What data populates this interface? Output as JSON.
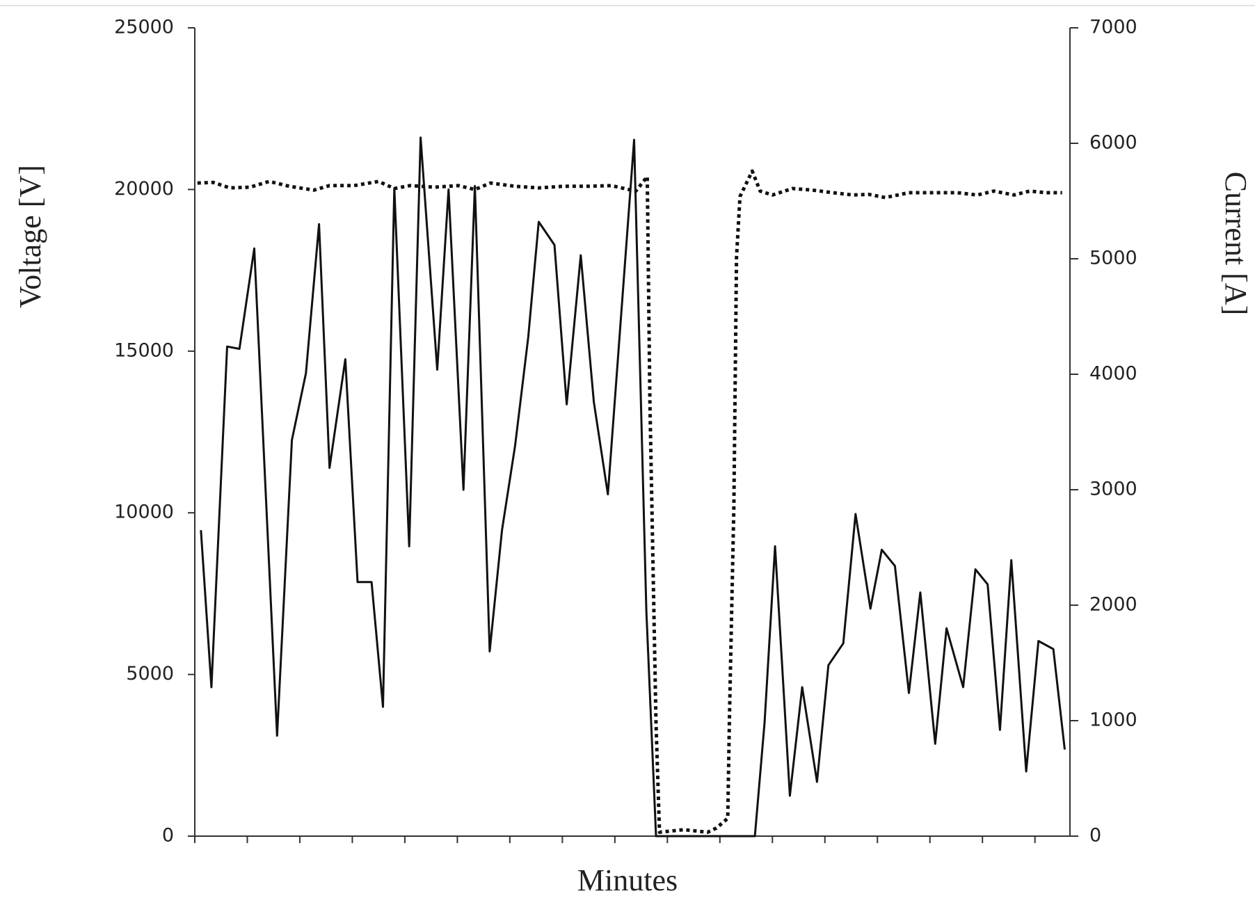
{
  "chart_data": {
    "type": "line",
    "y_label": "Voltage [V]",
    "y2_label": "Current [A]",
    "x_label": "Minutes",
    "xlim": [
      0,
      100
    ],
    "xticks": [
      0,
      6,
      12,
      18,
      24,
      30,
      36,
      42,
      48,
      54,
      60,
      66,
      72,
      78,
      84,
      90,
      96
    ],
    "ylim": [
      0,
      25000
    ],
    "yticks": [
      0,
      5000,
      10000,
      15000,
      20000,
      25000
    ],
    "y2lim": [
      0,
      7000
    ],
    "y2ticks": [
      0,
      1000,
      2000,
      3000,
      4000,
      5000,
      6000,
      7000
    ],
    "series": [
      {
        "color": "#111111",
        "style": "dotted",
        "axis": "y",
        "x": [
          0.3,
          2.1,
          4.0,
          6.3,
          8.5,
          10.8,
          13.6,
          15.4,
          18.2,
          21.0,
          22.8,
          24.6,
          27.4,
          30.1,
          32.0,
          33.8,
          36.6,
          39.3,
          42.1,
          44.9,
          47.6,
          50.4,
          51.7,
          52.0,
          52.7,
          53.1,
          55.9,
          58.6,
          59.6,
          60.9,
          61.1,
          61.6,
          61.9,
          62.3,
          63.7,
          64.6,
          66.0,
          68.3,
          70.6,
          72.9,
          75.2,
          77.0,
          78.9,
          81.6,
          84.4,
          87.1,
          89.4,
          91.3,
          93.6,
          95.4,
          97.2,
          99.1
        ],
        "values": [
          20200,
          20220,
          20050,
          20070,
          20250,
          20100,
          19980,
          20120,
          20120,
          20250,
          20030,
          20120,
          20070,
          20120,
          20000,
          20200,
          20100,
          20050,
          20100,
          20100,
          20120,
          19950,
          20400,
          13430,
          3480,
          120,
          200,
          120,
          250,
          550,
          3730,
          10200,
          17910,
          19780,
          20570,
          19950,
          19830,
          20030,
          19980,
          19900,
          19830,
          19850,
          19750,
          19900,
          19900,
          19900,
          19830,
          19950,
          19830,
          19950,
          19900,
          19900
        ]
      },
      {
        "color": "#111111",
        "style": "solid",
        "axis": "y2",
        "x": [
          0.7,
          1.9,
          3.7,
          5.1,
          6.8,
          9.4,
          11.1,
          12.7,
          14.2,
          15.4,
          17.2,
          18.6,
          20.2,
          21.5,
          22.8,
          24.5,
          25.8,
          27.7,
          29.0,
          30.7,
          32.0,
          33.7,
          35.1,
          36.6,
          38.1,
          39.3,
          41.1,
          42.5,
          44.1,
          45.6,
          47.2,
          50.2,
          51.6,
          52.7,
          64.0,
          65.1,
          66.3,
          68.0,
          69.4,
          71.1,
          72.4,
          74.1,
          75.5,
          77.2,
          78.5,
          80.0,
          81.6,
          82.9,
          84.6,
          85.9,
          87.8,
          89.2,
          90.6,
          92.0,
          93.3,
          95.0,
          96.4,
          98.1,
          99.4
        ],
        "values": [
          2650,
          1290,
          4240,
          4220,
          5090,
          870,
          3430,
          4010,
          5300,
          3190,
          4130,
          2200,
          2200,
          1120,
          5610,
          2510,
          6050,
          4040,
          5600,
          3000,
          5630,
          1600,
          2650,
          3380,
          4320,
          5320,
          5120,
          3740,
          5030,
          3760,
          2960,
          6030,
          1950,
          0,
          0,
          980,
          2510,
          350,
          1290,
          470,
          1480,
          1670,
          2790,
          1970,
          2480,
          2340,
          1240,
          2110,
          800,
          1800,
          1290,
          2310,
          2180,
          920,
          2390,
          560,
          1690,
          1620,
          750
        ]
      }
    ]
  }
}
